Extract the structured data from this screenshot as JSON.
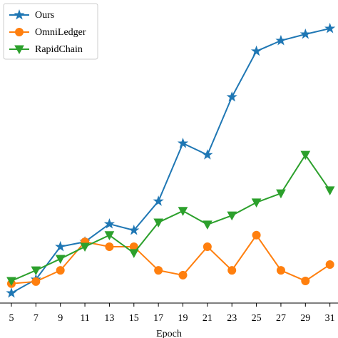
{
  "chart_data": {
    "type": "line",
    "xlabel": "Epoch",
    "x": [
      5,
      7,
      9,
      11,
      13,
      15,
      17,
      19,
      21,
      23,
      25,
      27,
      29,
      31
    ],
    "xlim": [
      4.07,
      31.66
    ],
    "xticks": [
      5,
      7,
      9,
      11,
      13,
      15,
      17,
      19,
      21,
      23,
      25,
      27,
      29,
      31
    ],
    "ylim": [
      0,
      100
    ],
    "legend": "upper left",
    "series": [
      {
        "name": "Ours",
        "color": "#1f77b4",
        "marker": "star",
        "values": [
          3.3,
          7.8,
          18.6,
          20.2,
          26.1,
          24.0,
          33.6,
          52.7,
          48.9,
          68.0,
          83.1,
          86.6,
          88.7,
          90.6
        ]
      },
      {
        "name": "OmniLedger",
        "color": "#ff7f0e",
        "marker": "circle",
        "values": [
          6.4,
          7.1,
          10.8,
          20.2,
          18.6,
          18.6,
          10.8,
          9.2,
          18.6,
          10.8,
          22.4,
          10.8,
          7.3,
          12.7
        ]
      },
      {
        "name": "RapidChain",
        "color": "#2ca02c",
        "marker": "triangle-down",
        "values": [
          7.3,
          10.8,
          14.6,
          18.6,
          22.4,
          16.5,
          26.6,
          30.4,
          25.9,
          28.9,
          33.2,
          36.2,
          48.9,
          37.2
        ]
      }
    ]
  }
}
